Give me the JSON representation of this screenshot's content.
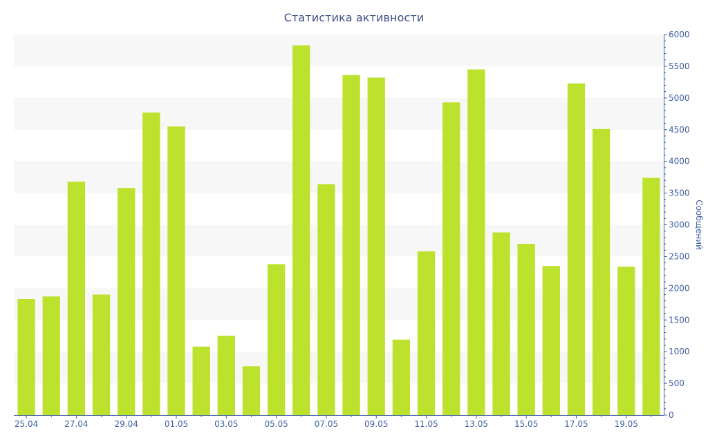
{
  "chart_data": {
    "type": "bar",
    "title": "Статистика активности",
    "xlabel": "",
    "ylabel": "Сообщений",
    "ylim": [
      0,
      6000
    ],
    "yticks": [
      0,
      500,
      1000,
      1500,
      2000,
      2500,
      3000,
      3500,
      4000,
      4500,
      5000,
      5500,
      6000
    ],
    "y_axis_side": "right",
    "categories": [
      "25.04",
      "26.04",
      "27.04",
      "28.04",
      "29.04",
      "30.04",
      "01.05",
      "02.05",
      "03.05",
      "04.05",
      "05.05",
      "06.05",
      "07.05",
      "08.05",
      "09.05",
      "10.05",
      "11.05",
      "12.05",
      "13.05",
      "14.05",
      "15.05",
      "16.05",
      "17.05",
      "18.05",
      "19.05",
      "20.05"
    ],
    "x_tick_labels": [
      "25.04",
      "",
      "27.04",
      "",
      "29.04",
      "",
      "01.05",
      "",
      "03.05",
      "",
      "05.05",
      "",
      "07.05",
      "",
      "09.05",
      "",
      "11.05",
      "",
      "13.05",
      "",
      "15.05",
      "",
      "17.05",
      "",
      "19.05",
      ""
    ],
    "values": [
      1830,
      1870,
      3680,
      1900,
      3580,
      4770,
      4550,
      1080,
      1250,
      770,
      2380,
      5830,
      3640,
      5360,
      5320,
      1190,
      2580,
      4930,
      5450,
      2880,
      2700,
      2350,
      5230,
      4510,
      2340,
      3740
    ],
    "grid": true,
    "colors": {
      "bar": "#bce22e",
      "band": "#f7f7f7",
      "axis": "#3f5fa0",
      "title": "#3e4f86"
    }
  }
}
